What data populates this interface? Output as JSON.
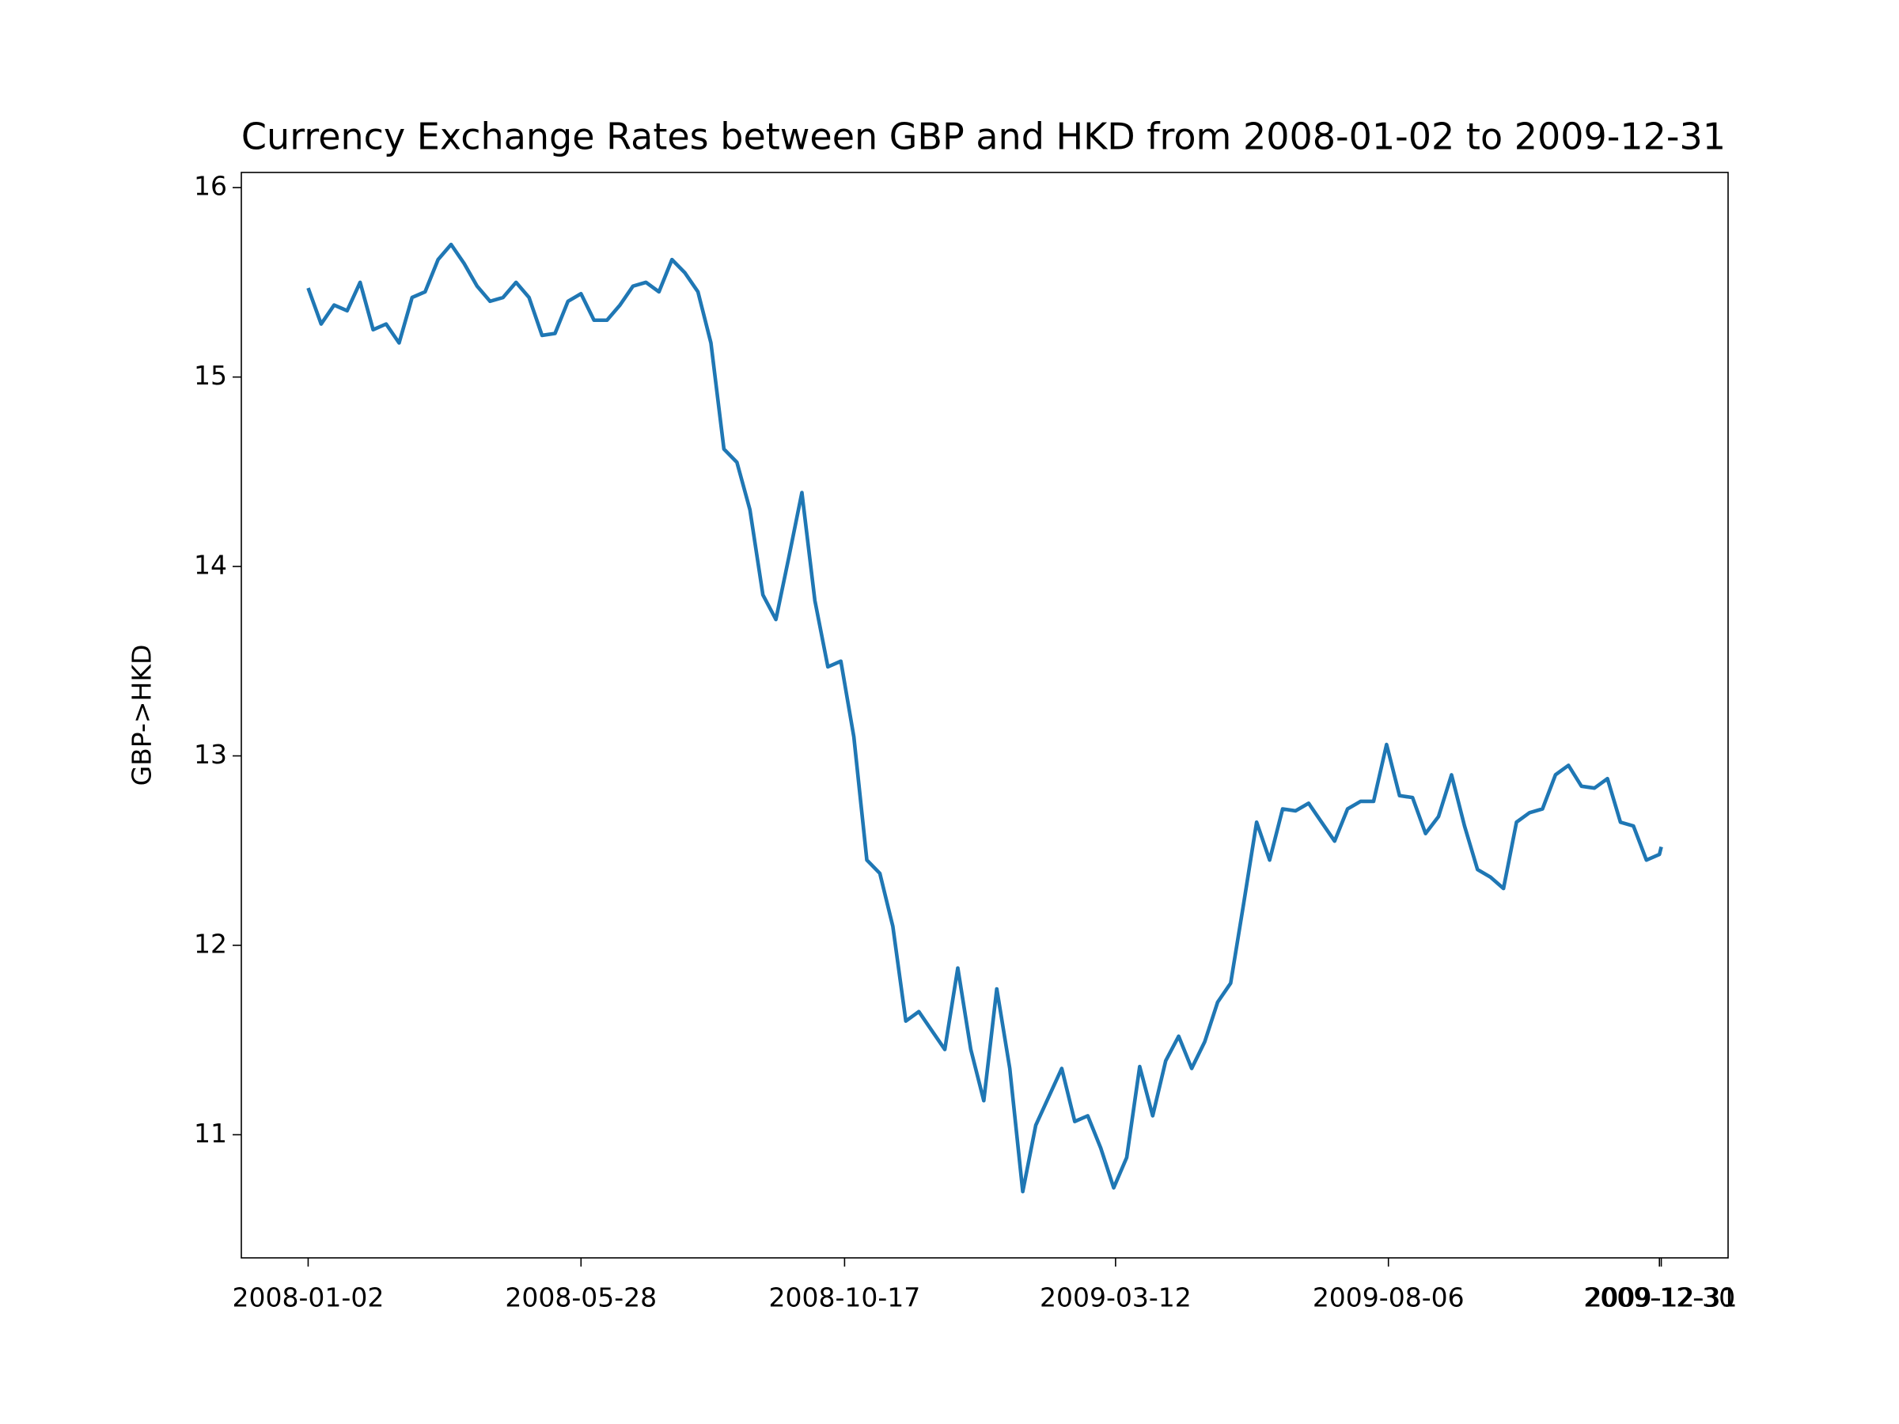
{
  "chart_data": {
    "type": "line",
    "title": "Currency Exchange Rates between GBP and HKD from 2008-01-02 to 2009-12-31",
    "title_color": "#008000",
    "y_label": "GBP->HKD",
    "x": [
      "2008-01-02",
      "2008-01-09",
      "2008-01-16",
      "2008-01-23",
      "2008-01-30",
      "2008-02-06",
      "2008-02-13",
      "2008-02-20",
      "2008-02-27",
      "2008-03-05",
      "2008-03-12",
      "2008-03-19",
      "2008-03-26",
      "2008-04-02",
      "2008-04-09",
      "2008-04-16",
      "2008-04-23",
      "2008-04-30",
      "2008-05-07",
      "2008-05-14",
      "2008-05-21",
      "2008-05-28",
      "2008-06-04",
      "2008-06-11",
      "2008-06-18",
      "2008-06-25",
      "2008-07-02",
      "2008-07-09",
      "2008-07-16",
      "2008-07-23",
      "2008-07-30",
      "2008-08-06",
      "2008-08-13",
      "2008-08-20",
      "2008-08-27",
      "2008-09-03",
      "2008-09-10",
      "2008-09-17",
      "2008-09-24",
      "2008-10-01",
      "2008-10-08",
      "2008-10-15",
      "2008-10-22",
      "2008-10-29",
      "2008-11-05",
      "2008-11-12",
      "2008-11-19",
      "2008-11-26",
      "2008-12-03",
      "2008-12-10",
      "2008-12-17",
      "2008-12-24",
      "2008-12-31",
      "2009-01-07",
      "2009-01-14",
      "2009-01-21",
      "2009-01-28",
      "2009-02-04",
      "2009-02-11",
      "2009-02-18",
      "2009-02-25",
      "2009-03-04",
      "2009-03-11",
      "2009-03-18",
      "2009-03-25",
      "2009-04-01",
      "2009-04-08",
      "2009-04-15",
      "2009-04-22",
      "2009-04-29",
      "2009-05-06",
      "2009-05-13",
      "2009-05-20",
      "2009-05-27",
      "2009-06-03",
      "2009-06-10",
      "2009-06-17",
      "2009-06-24",
      "2009-07-01",
      "2009-07-08",
      "2009-07-15",
      "2009-07-22",
      "2009-07-29",
      "2009-08-05",
      "2009-08-12",
      "2009-08-19",
      "2009-08-26",
      "2009-09-02",
      "2009-09-09",
      "2009-09-16",
      "2009-09-23",
      "2009-09-30",
      "2009-10-07",
      "2009-10-14",
      "2009-10-21",
      "2009-10-28",
      "2009-11-04",
      "2009-11-11",
      "2009-11-18",
      "2009-11-25",
      "2009-12-02",
      "2009-12-09",
      "2009-12-16",
      "2009-12-23",
      "2009-12-30",
      "2009-12-31"
    ],
    "series": [
      {
        "name": "GBP->HKD",
        "color": "#1f77b4",
        "values": [
          15.47,
          15.28,
          15.38,
          15.35,
          15.5,
          15.25,
          15.28,
          15.18,
          15.42,
          15.45,
          15.62,
          15.7,
          15.6,
          15.48,
          15.4,
          15.42,
          15.5,
          15.42,
          15.22,
          15.23,
          15.4,
          15.44,
          15.3,
          15.3,
          15.38,
          15.48,
          15.5,
          15.45,
          15.62,
          15.55,
          15.45,
          15.18,
          14.62,
          14.55,
          14.3,
          13.85,
          13.72,
          14.05,
          14.39,
          13.82,
          13.47,
          13.5,
          13.1,
          12.45,
          12.38,
          12.1,
          11.6,
          11.65,
          11.55,
          11.45,
          11.88,
          11.45,
          11.18,
          11.77,
          11.35,
          10.7,
          11.05,
          11.2,
          11.35,
          11.07,
          11.1,
          10.93,
          10.72,
          10.88,
          11.36,
          11.1,
          11.39,
          11.52,
          11.35,
          11.49,
          11.7,
          11.8,
          12.22,
          12.65,
          12.45,
          12.72,
          12.71,
          12.75,
          12.65,
          12.55,
          12.72,
          12.76,
          12.76,
          13.06,
          12.79,
          12.78,
          12.59,
          12.68,
          12.9,
          12.63,
          12.4,
          12.36,
          12.3,
          12.65,
          12.7,
          12.72,
          12.9,
          12.95,
          12.84,
          12.83,
          12.88,
          12.65,
          12.63,
          12.45,
          12.48,
          12.52
        ]
      }
    ],
    "xlim": [
      "2007-11-27",
      "2010-02-05"
    ],
    "xticks": [
      "2008-01-02",
      "2008-05-28",
      "2008-10-17",
      "2009-03-12",
      "2009-08-06",
      "2009-12-30",
      "2009-12-31"
    ],
    "ylim": [
      10.35,
      16.08
    ],
    "yticks": [
      11,
      12,
      13,
      14,
      15,
      16
    ],
    "grid": false
  }
}
